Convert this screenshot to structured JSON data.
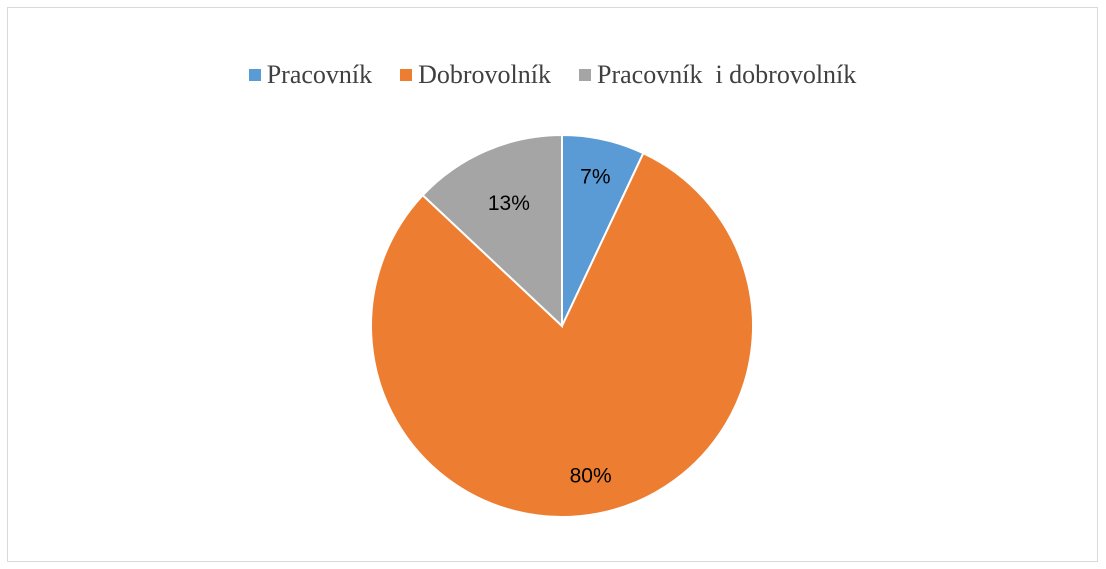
{
  "chart_data": {
    "type": "pie",
    "title": "",
    "categories": [
      "Pracovník",
      "Dobrovolník",
      "Pracovník  i dobrovolník"
    ],
    "values": [
      7,
      80,
      13
    ],
    "data_labels": [
      "7%",
      "80%",
      "13%"
    ],
    "colors": [
      "#5b9bd5",
      "#ed7d31",
      "#a5a5a5"
    ],
    "legend_position": "top"
  }
}
